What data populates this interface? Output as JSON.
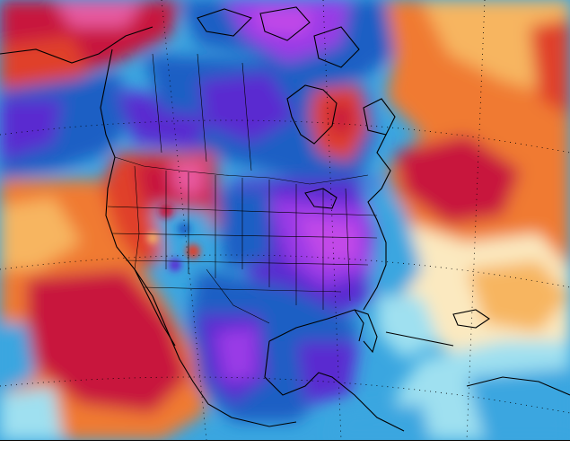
{
  "map": {
    "kind": "weather-anomaly-map",
    "region": "North America",
    "legend_visible": false,
    "title_visible": false,
    "colors": {
      "warm_extreme": "#c8143c",
      "warm_high": "#e0402a",
      "warm_mid": "#f07a30",
      "warm_low": "#f7b560",
      "neutral": "#fbe9c0",
      "cool_low": "#9fe0f0",
      "cool_mid": "#3aa6e0",
      "cool_high": "#1e5fc4",
      "cold_extreme": "#5a2ad0",
      "cold_purple": "#9a3ae6",
      "cold_magenta": "#c24ae8",
      "land_outline": "#000000"
    }
  }
}
